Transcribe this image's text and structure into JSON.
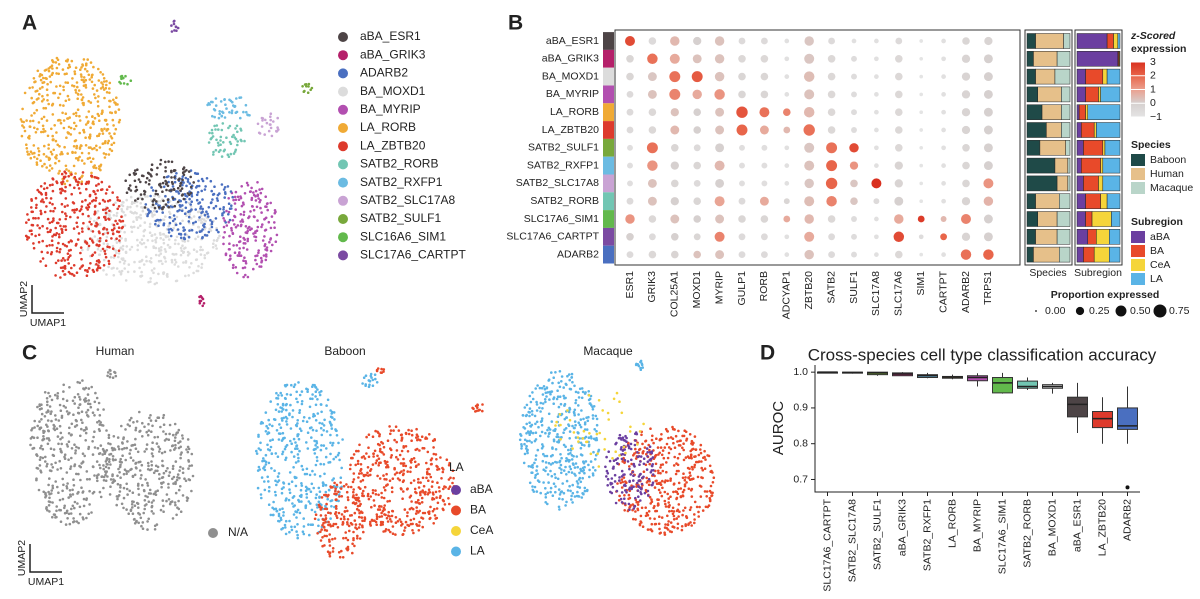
{
  "chart_data": [
    {
      "type": "umap",
      "label": "A",
      "x_label": "UMAP1",
      "y_label": "UMAP2",
      "series": [
        {
          "name": "aBA_ESR1",
          "color": "#4d4446"
        },
        {
          "name": "aBA_GRIK3",
          "color": "#b5206a"
        },
        {
          "name": "ADARB2",
          "color": "#4a6fc0"
        },
        {
          "name": "BA_MOXD1",
          "color": "#dcdcdc"
        },
        {
          "name": "BA_MYRIP",
          "color": "#b24fb0"
        },
        {
          "name": "LA_RORB",
          "color": "#f0aa35"
        },
        {
          "name": "LA_ZBTB20",
          "color": "#dd3a2c"
        },
        {
          "name": "SATB2_RORB",
          "color": "#72c6b3"
        },
        {
          "name": "SATB2_RXFP1",
          "color": "#6bbbe2"
        },
        {
          "name": "SATB2_SLC17A8",
          "color": "#c9a3d4"
        },
        {
          "name": "SATB2_SULF1",
          "color": "#78a83b"
        },
        {
          "name": "SLC16A6_SIM1",
          "color": "#62b94c"
        },
        {
          "name": "SLC17A6_CARTPT",
          "color": "#7b4aa2"
        }
      ]
    },
    {
      "type": "dotplot",
      "label": "B",
      "rows": [
        "aBA_ESR1",
        "aBA_GRIK3",
        "BA_MOXD1",
        "BA_MYRIP",
        "LA_RORB",
        "LA_ZBTB20",
        "SATB2_SULF1",
        "SATB2_RXFP1",
        "SATB2_SLC17A8",
        "SATB2_RORB",
        "SLC17A6_SIM1",
        "SLC17A6_CARTPT",
        "ADARB2"
      ],
      "row_colors": [
        "#4d4446",
        "#b5206a",
        "#dcdcdc",
        "#b24fb0",
        "#f0aa35",
        "#dd3a2c",
        "#78a83b",
        "#6bbbe2",
        "#c9a3d4",
        "#72c6b3",
        "#62b94c",
        "#7b4aa2",
        "#4a6fc0"
      ],
      "columns": [
        "ESR1",
        "GRIK3",
        "COL25A1",
        "MOXD1",
        "MYRIP",
        "GULP1",
        "RORB",
        "ADCYAP1",
        "ZBTB20",
        "SATB2",
        "SULF1",
        "SLC17A8",
        "SLC17A6",
        "SIM1",
        "CARTPT",
        "ADARB2",
        "TRPS1"
      ],
      "proportion": [
        [
          0.4,
          0.2,
          0.35,
          0.25,
          0.35,
          0.15,
          0.15,
          0.05,
          0.35,
          0.15,
          0.05,
          0.05,
          0.15,
          0.02,
          0.05,
          0.2,
          0.25
        ],
        [
          0.2,
          0.45,
          0.4,
          0.3,
          0.35,
          0.2,
          0.2,
          0.05,
          0.4,
          0.2,
          0.1,
          0.05,
          0.2,
          0.02,
          0.05,
          0.25,
          0.3
        ],
        [
          0.2,
          0.3,
          0.5,
          0.5,
          0.35,
          0.2,
          0.2,
          0.05,
          0.45,
          0.2,
          0.1,
          0.05,
          0.2,
          0.02,
          0.05,
          0.25,
          0.3
        ],
        [
          0.15,
          0.3,
          0.5,
          0.35,
          0.45,
          0.2,
          0.2,
          0.05,
          0.4,
          0.2,
          0.1,
          0.05,
          0.2,
          0.02,
          0.05,
          0.25,
          0.3
        ],
        [
          0.15,
          0.2,
          0.25,
          0.2,
          0.3,
          0.55,
          0.4,
          0.2,
          0.45,
          0.2,
          0.1,
          0.05,
          0.2,
          0.02,
          0.05,
          0.25,
          0.3
        ],
        [
          0.15,
          0.2,
          0.3,
          0.2,
          0.3,
          0.5,
          0.3,
          0.15,
          0.55,
          0.2,
          0.1,
          0.05,
          0.2,
          0.02,
          0.05,
          0.25,
          0.3
        ],
        [
          0.1,
          0.5,
          0.2,
          0.15,
          0.3,
          0.1,
          0.1,
          0.05,
          0.4,
          0.5,
          0.35,
          0.05,
          0.2,
          0.02,
          0.05,
          0.2,
          0.3
        ],
        [
          0.1,
          0.45,
          0.25,
          0.2,
          0.4,
          0.1,
          0.1,
          0.05,
          0.4,
          0.5,
          0.25,
          0.05,
          0.25,
          0.02,
          0.05,
          0.2,
          0.3
        ],
        [
          0.1,
          0.3,
          0.2,
          0.15,
          0.3,
          0.1,
          0.1,
          0.05,
          0.35,
          0.55,
          0.2,
          0.4,
          0.25,
          0.02,
          0.05,
          0.2,
          0.4
        ],
        [
          0.15,
          0.3,
          0.25,
          0.2,
          0.4,
          0.15,
          0.3,
          0.1,
          0.4,
          0.45,
          0.2,
          0.1,
          0.3,
          0.02,
          0.05,
          0.25,
          0.35
        ],
        [
          0.35,
          0.2,
          0.3,
          0.2,
          0.3,
          0.2,
          0.2,
          0.15,
          0.35,
          0.2,
          0.1,
          0.05,
          0.35,
          0.15,
          0.1,
          0.4,
          0.3
        ],
        [
          0.2,
          0.15,
          0.2,
          0.15,
          0.4,
          0.15,
          0.15,
          0.05,
          0.4,
          0.15,
          0.1,
          0.05,
          0.45,
          0.05,
          0.15,
          0.25,
          0.3
        ],
        [
          0.15,
          0.2,
          0.2,
          0.2,
          0.3,
          0.15,
          0.15,
          0.05,
          0.35,
          0.15,
          0.1,
          0.05,
          0.2,
          0.02,
          0.05,
          0.45,
          0.45
        ]
      ],
      "zscore": [
        [
          2.5,
          -0.5,
          0.5,
          0,
          0.3,
          -0.5,
          -0.5,
          -0.8,
          0.2,
          -0.5,
          -0.8,
          -0.8,
          -0.5,
          -1,
          -0.8,
          -0.3,
          -0.2
        ],
        [
          -0.3,
          1.8,
          0.8,
          0.3,
          0.3,
          -0.4,
          -0.4,
          -0.8,
          0.2,
          -0.4,
          -0.6,
          -0.8,
          -0.4,
          -1,
          -0.8,
          -0.2,
          0
        ],
        [
          -0.3,
          0.2,
          1.8,
          2.2,
          0.3,
          -0.3,
          -0.3,
          -0.8,
          0.4,
          -0.4,
          -0.6,
          -0.8,
          -0.4,
          -1,
          -0.8,
          -0.2,
          0
        ],
        [
          -0.5,
          0.3,
          1.5,
          0.8,
          1.2,
          -0.3,
          -0.3,
          -0.8,
          0.3,
          -0.4,
          -0.6,
          -0.8,
          -0.4,
          -1,
          -0.8,
          -0.2,
          0
        ],
        [
          -0.5,
          -0.4,
          0.3,
          0,
          0.3,
          2.3,
          1.8,
          1.5,
          0.5,
          -0.4,
          -0.6,
          -0.8,
          -0.4,
          -1,
          -0.8,
          -0.2,
          0
        ],
        [
          -0.5,
          -0.4,
          0.5,
          0,
          0.3,
          2,
          0.8,
          0.5,
          1.8,
          -0.4,
          -0.6,
          -0.8,
          -0.4,
          -1,
          -0.8,
          -0.2,
          0
        ],
        [
          -0.7,
          1.8,
          -0.3,
          -0.5,
          0,
          -0.7,
          -0.7,
          -0.8,
          0.2,
          1.8,
          2.5,
          -0.8,
          -0.4,
          -1,
          -0.8,
          -0.3,
          0
        ],
        [
          -0.7,
          1.2,
          0,
          -0.3,
          0.5,
          -0.7,
          -0.7,
          -0.8,
          0.3,
          2,
          1.2,
          -0.8,
          -0.2,
          -1,
          -0.8,
          -0.3,
          0
        ],
        [
          -0.7,
          0.3,
          -0.3,
          -0.5,
          0,
          -0.7,
          -0.7,
          -0.8,
          0.2,
          2,
          0.2,
          3,
          -0.2,
          -1,
          -0.8,
          -0.3,
          1.2
        ],
        [
          -0.5,
          0.3,
          0,
          -0.3,
          0.9,
          -0.5,
          0.8,
          -0.3,
          0.4,
          1.5,
          0.2,
          -0.5,
          0,
          -1,
          -0.8,
          -0.2,
          0.6
        ],
        [
          1.2,
          -0.4,
          0.3,
          0,
          0.3,
          -0.3,
          -0.3,
          0.8,
          0.5,
          -0.4,
          -0.6,
          -0.8,
          0.8,
          2.8,
          0.5,
          1.5,
          0
        ],
        [
          0,
          -0.5,
          0,
          -0.3,
          1.5,
          -0.5,
          -0.5,
          -0.8,
          0.8,
          -0.5,
          -0.6,
          -0.8,
          2.5,
          -0.6,
          2,
          -0.2,
          0
        ],
        [
          -0.5,
          -0.4,
          -0.2,
          0.3,
          0.3,
          -0.5,
          -0.5,
          -0.8,
          0.3,
          -0.5,
          -0.6,
          -0.8,
          -0.4,
          -1,
          -0.8,
          1.8,
          2
        ]
      ],
      "z_title": [
        "z-Scored",
        "expression"
      ],
      "zticks": [
        3,
        2,
        1,
        0,
        {
          "value": -1,
          "label": "−1"
        }
      ],
      "z_colors": [
        "#d9301f",
        "#e8654a",
        "#eba08f",
        "#d6d0cf",
        "#e4e4e4"
      ],
      "size_title": "Proportion expressed",
      "size_ticks": [
        {
          "value": 0,
          "label": "0.00"
        },
        {
          "value": 0.25,
          "label": "0.25"
        },
        {
          "value": 0.5,
          "label": "0.50"
        },
        {
          "value": 0.75,
          "label": "0.75"
        }
      ],
      "species": {
        "title": "Species",
        "names": [
          "Baboon",
          "Human",
          "Macaque"
        ],
        "colors": [
          "#1f4a48",
          "#e6c08a",
          "#b9d5c9"
        ],
        "values": [
          [
            0.2,
            0.65,
            0.15
          ],
          [
            0.15,
            0.55,
            0.3
          ],
          [
            0.2,
            0.45,
            0.35
          ],
          [
            0.25,
            0.55,
            0.2
          ],
          [
            0.35,
            0.45,
            0.2
          ],
          [
            0.45,
            0.35,
            0.2
          ],
          [
            0.3,
            0.6,
            0.1
          ],
          [
            0.65,
            0.3,
            0.05
          ],
          [
            0.7,
            0.25,
            0.05
          ],
          [
            0.2,
            0.55,
            0.25
          ],
          [
            0.25,
            0.45,
            0.3
          ],
          [
            0.2,
            0.5,
            0.3
          ],
          [
            0.15,
            0.6,
            0.25
          ]
        ]
      },
      "subregion": {
        "title": "Subregion",
        "names": [
          "aBA",
          "BA",
          "CeA",
          "LA"
        ],
        "colors": [
          "#6b3fa0",
          "#e84a2a",
          "#f5d53a",
          "#5ab4e6"
        ],
        "values": [
          [
            0.7,
            0.15,
            0.1,
            0.05
          ],
          [
            0.95,
            0.02,
            0.02,
            0.01
          ],
          [
            0.2,
            0.4,
            0.1,
            0.3
          ],
          [
            0.2,
            0.3,
            0.05,
            0.45
          ],
          [
            0.05,
            0.15,
            0.05,
            0.75
          ],
          [
            0.1,
            0.3,
            0.05,
            0.55
          ],
          [
            0.15,
            0.45,
            0.05,
            0.35
          ],
          [
            0.1,
            0.45,
            0.05,
            0.4
          ],
          [
            0.15,
            0.35,
            0.1,
            0.4
          ],
          [
            0.2,
            0.35,
            0.15,
            0.3
          ],
          [
            0.2,
            0.15,
            0.45,
            0.2
          ],
          [
            0.25,
            0.2,
            0.3,
            0.25
          ],
          [
            0.15,
            0.25,
            0.35,
            0.25
          ]
        ]
      }
    },
    {
      "type": "umap",
      "label": "C",
      "x_label": "UMAP1",
      "y_label": "UMAP2",
      "panels": [
        "Human",
        "Baboon",
        "Macaque"
      ],
      "legend_title": "LA",
      "na": {
        "name": "N/A",
        "color": "#8f8f8f"
      },
      "series": [
        {
          "name": "aBA",
          "color": "#6b3fa0"
        },
        {
          "name": "BA",
          "color": "#e84a2a"
        },
        {
          "name": "CeA",
          "color": "#f5d53a"
        },
        {
          "name": "LA",
          "color": "#5ab4e6"
        }
      ]
    },
    {
      "type": "box",
      "label": "D",
      "title": "Cross-species cell type classification accuracy",
      "y_label": "AUROC",
      "categories": [
        "SLC17A6_CARTPT",
        "SATB2_SLC17A8",
        "SATB2_SULF1",
        "aBA_GRIK3",
        "SATB2_RXFP1",
        "LA_RORB",
        "BA_MYRIP",
        "SLC17A6_SIM1",
        "SATB2_RORB",
        "BA_MOXD1",
        "aBA_ESR1",
        "LA_ZBTB20",
        "ADARB2"
      ],
      "colors": [
        "#7b4aa2",
        "#c9a3d4",
        "#78a83b",
        "#b5206a",
        "#6bbbe2",
        "#f0aa35",
        "#b24fb0",
        "#62b94c",
        "#72c6b3",
        "#dcdcdc",
        "#4d4446",
        "#dd3a2c",
        "#4a6fc0"
      ],
      "boxes": [
        {
          "min": 0.998,
          "q1": 0.999,
          "median": 1.0,
          "q3": 1.0,
          "max": 1.0
        },
        {
          "min": 0.996,
          "q1": 0.998,
          "median": 0.999,
          "q3": 1.0,
          "max": 1.0
        },
        {
          "min": 0.99,
          "q1": 0.993,
          "median": 0.998,
          "q3": 1.0,
          "max": 1.0
        },
        {
          "min": 0.99,
          "q1": 0.99,
          "median": 0.995,
          "q3": 0.998,
          "max": 1.0
        },
        {
          "min": 0.983,
          "q1": 0.985,
          "median": 0.99,
          "q3": 0.993,
          "max": 0.998
        },
        {
          "min": 0.98,
          "q1": 0.983,
          "median": 0.986,
          "q3": 0.988,
          "max": 0.993
        },
        {
          "min": 0.96,
          "q1": 0.976,
          "median": 0.985,
          "q3": 0.99,
          "max": 0.997
        },
        {
          "min": 0.94,
          "q1": 0.942,
          "median": 0.97,
          "q3": 0.985,
          "max": 0.998
        },
        {
          "min": 0.95,
          "q1": 0.955,
          "median": 0.96,
          "q3": 0.975,
          "max": 0.985
        },
        {
          "min": 0.94,
          "q1": 0.955,
          "median": 0.96,
          "q3": 0.965,
          "max": 0.97
        },
        {
          "min": 0.83,
          "q1": 0.875,
          "median": 0.91,
          "q3": 0.93,
          "max": 0.97
        },
        {
          "min": 0.8,
          "q1": 0.845,
          "median": 0.87,
          "q3": 0.89,
          "max": 0.93
        },
        {
          "min": 0.8,
          "q1": 0.84,
          "median": 0.85,
          "q3": 0.9,
          "max": 0.96
        }
      ],
      "outliers": [
        [],
        [],
        [],
        [],
        [],
        [],
        [],
        [],
        [],
        [],
        [],
        [],
        [
          0.678
        ]
      ],
      "ylim": [
        0.665,
        1.02
      ],
      "yticks": [
        0.7,
        0.8,
        0.9,
        {
          "value": 1,
          "label": "1.0"
        }
      ]
    }
  ]
}
